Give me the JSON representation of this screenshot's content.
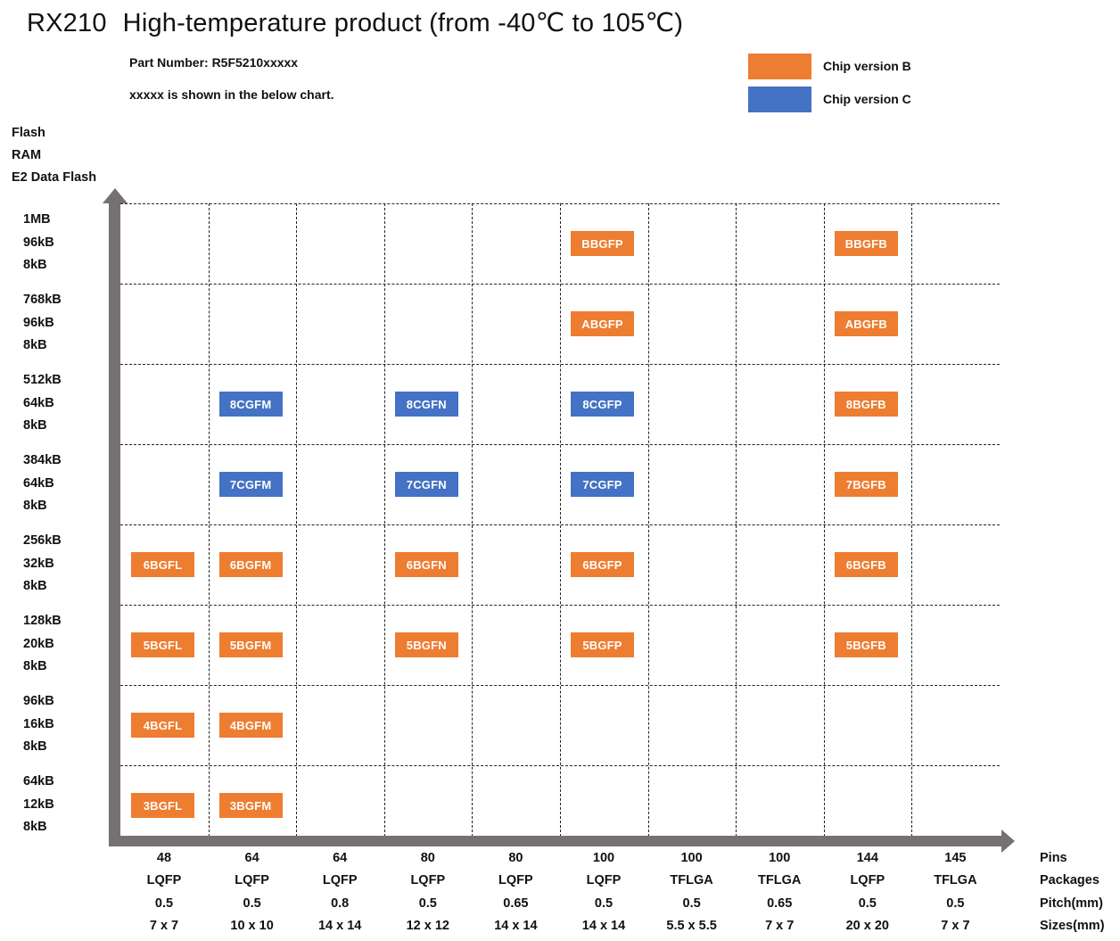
{
  "header": {
    "model": "RX210",
    "title": "High-temperature product (from -40℃ to 105℃)",
    "part_number": "Part Number: R5F5210xxxxx",
    "note": "xxxxx is shown in the below chart."
  },
  "legend": [
    {
      "label": "Chip version B",
      "color": "#ED7D31"
    },
    {
      "label": "Chip version C",
      "color": "#4472C4"
    }
  ],
  "y_axis": {
    "titles": [
      "Flash",
      "RAM",
      "E2 Data Flash"
    ],
    "rows": [
      {
        "flash": "1MB",
        "ram": "96kB",
        "e2": "8kB"
      },
      {
        "flash": "768kB",
        "ram": "96kB",
        "e2": "8kB"
      },
      {
        "flash": "512kB",
        "ram": "64kB",
        "e2": "8kB"
      },
      {
        "flash": "384kB",
        "ram": "64kB",
        "e2": "8kB"
      },
      {
        "flash": "256kB",
        "ram": "32kB",
        "e2": "8kB"
      },
      {
        "flash": "128kB",
        "ram": "20kB",
        "e2": "8kB"
      },
      {
        "flash": "96kB",
        "ram": "16kB",
        "e2": "8kB"
      },
      {
        "flash": "64kB",
        "ram": "12kB",
        "e2": "8kB"
      }
    ]
  },
  "x_axis": {
    "row_labels": [
      "Pins",
      "Packages",
      "Pitch(mm)",
      "Sizes(mm)"
    ],
    "columns": [
      {
        "pins": "48",
        "package": "LQFP",
        "pitch": "0.5",
        "size": "7 x 7"
      },
      {
        "pins": "64",
        "package": "LQFP",
        "pitch": "0.5",
        "size": "10 x 10"
      },
      {
        "pins": "64",
        "package": "LQFP",
        "pitch": "0.8",
        "size": "14 x 14"
      },
      {
        "pins": "80",
        "package": "LQFP",
        "pitch": "0.5",
        "size": "12 x 12"
      },
      {
        "pins": "80",
        "package": "LQFP",
        "pitch": "0.65",
        "size": "14 x 14"
      },
      {
        "pins": "100",
        "package": "LQFP",
        "pitch": "0.5",
        "size": "14 x 14"
      },
      {
        "pins": "100",
        "package": "TFLGA",
        "pitch": "0.5",
        "size": "5.5 x 5.5"
      },
      {
        "pins": "100",
        "package": "TFLGA",
        "pitch": "0.65",
        "size": "7 x 7"
      },
      {
        "pins": "144",
        "package": "LQFP",
        "pitch": "0.5",
        "size": "20 x 20"
      },
      {
        "pins": "145",
        "package": "TFLGA",
        "pitch": "0.5",
        "size": "7 x 7"
      }
    ]
  },
  "chips": [
    {
      "code": "BBGFP",
      "row": 0,
      "col": 5,
      "version": "B"
    },
    {
      "code": "BBGFB",
      "row": 0,
      "col": 8,
      "version": "B"
    },
    {
      "code": "ABGFP",
      "row": 1,
      "col": 5,
      "version": "B"
    },
    {
      "code": "ABGFB",
      "row": 1,
      "col": 8,
      "version": "B"
    },
    {
      "code": "8CGFM",
      "row": 2,
      "col": 1,
      "version": "C"
    },
    {
      "code": "8CGFN",
      "row": 2,
      "col": 3,
      "version": "C"
    },
    {
      "code": "8CGFP",
      "row": 2,
      "col": 5,
      "version": "C"
    },
    {
      "code": "8BGFB",
      "row": 2,
      "col": 8,
      "version": "B"
    },
    {
      "code": "7CGFM",
      "row": 3,
      "col": 1,
      "version": "C"
    },
    {
      "code": "7CGFN",
      "row": 3,
      "col": 3,
      "version": "C"
    },
    {
      "code": "7CGFP",
      "row": 3,
      "col": 5,
      "version": "C"
    },
    {
      "code": "7BGFB",
      "row": 3,
      "col": 8,
      "version": "B"
    },
    {
      "code": "6BGFL",
      "row": 4,
      "col": 0,
      "version": "B"
    },
    {
      "code": "6BGFM",
      "row": 4,
      "col": 1,
      "version": "B"
    },
    {
      "code": "6BGFN",
      "row": 4,
      "col": 3,
      "version": "B"
    },
    {
      "code": "6BGFP",
      "row": 4,
      "col": 5,
      "version": "B"
    },
    {
      "code": "6BGFB",
      "row": 4,
      "col": 8,
      "version": "B"
    },
    {
      "code": "5BGFL",
      "row": 5,
      "col": 0,
      "version": "B"
    },
    {
      "code": "5BGFM",
      "row": 5,
      "col": 1,
      "version": "B"
    },
    {
      "code": "5BGFN",
      "row": 5,
      "col": 3,
      "version": "B"
    },
    {
      "code": "5BGFP",
      "row": 5,
      "col": 5,
      "version": "B"
    },
    {
      "code": "5BGFB",
      "row": 5,
      "col": 8,
      "version": "B"
    },
    {
      "code": "4BGFL",
      "row": 6,
      "col": 0,
      "version": "B"
    },
    {
      "code": "4BGFM",
      "row": 6,
      "col": 1,
      "version": "B"
    },
    {
      "code": "3BGFL",
      "row": 7,
      "col": 0,
      "version": "B"
    },
    {
      "code": "3BGFM",
      "row": 7,
      "col": 1,
      "version": "B"
    }
  ]
}
